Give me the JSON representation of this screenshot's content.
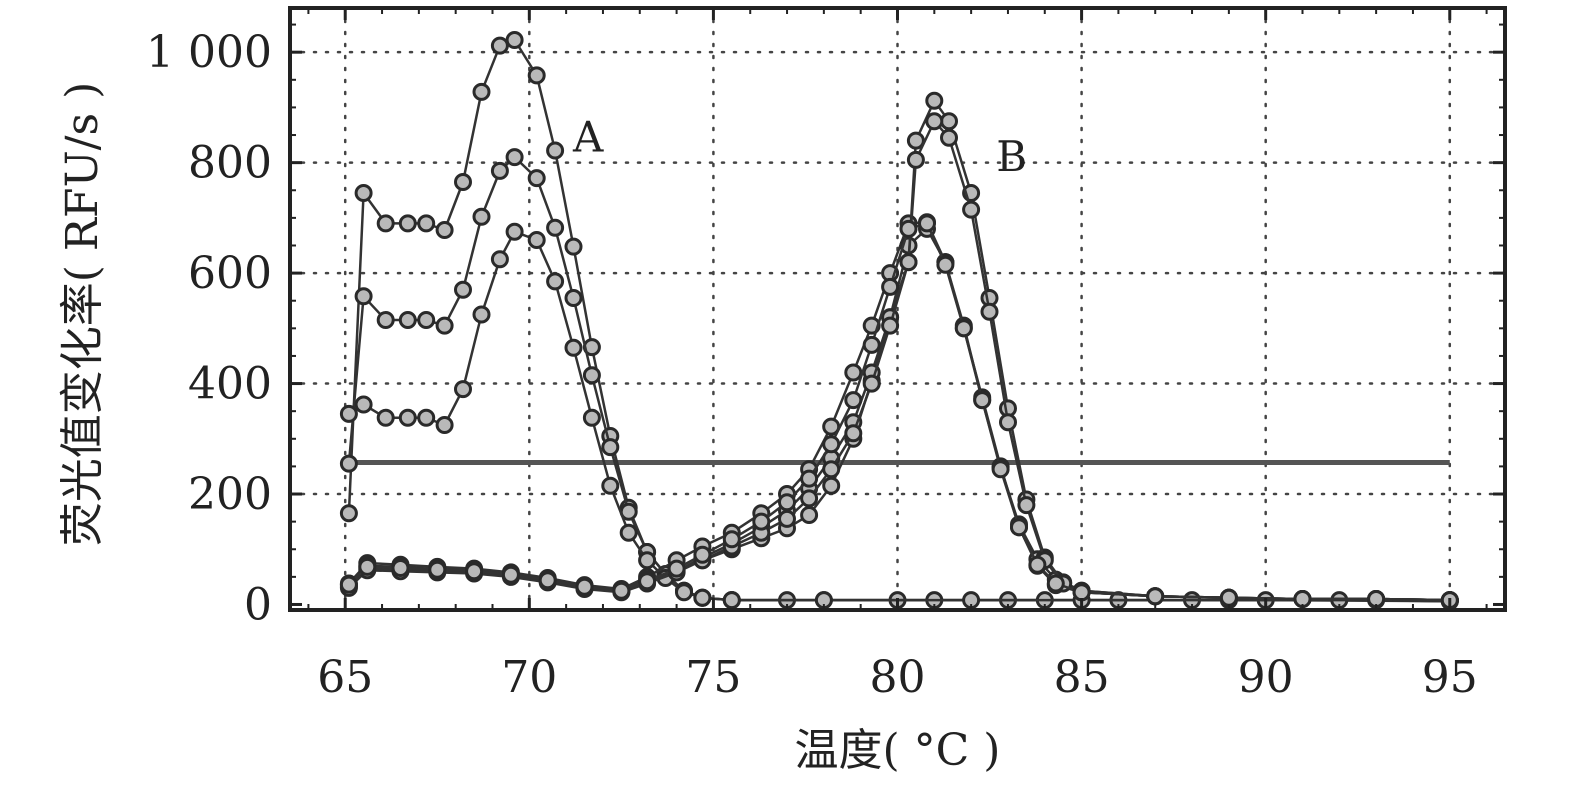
{
  "chart_data": {
    "type": "line",
    "xlabel": "温度( °C )",
    "ylabel": "荧光值变化率( RFU/s )",
    "xlim": [
      63.5,
      96.5
    ],
    "ylim": [
      -10,
      1080
    ],
    "x_ticks": [
      "65",
      "70",
      "75",
      "80",
      "85",
      "90",
      "95"
    ],
    "y_ticks": [
      "0",
      "200",
      "400",
      "600",
      "800",
      "1 000"
    ],
    "grid": true,
    "grid_style": "dotted",
    "annotations": [
      {
        "text": "A",
        "x": 71.6,
        "y": 820
      },
      {
        "text": "B",
        "x": 83.1,
        "y": 785
      }
    ],
    "threshold": {
      "y": 257,
      "x_start": 65.1,
      "x_end": 95
    },
    "series": [
      {
        "group": "A",
        "points": [
          [
            65.1,
            165
          ],
          [
            65.5,
            745
          ],
          [
            66.1,
            690
          ],
          [
            66.7,
            690
          ],
          [
            67.2,
            690
          ],
          [
            67.7,
            678
          ],
          [
            68.2,
            765
          ],
          [
            68.7,
            928
          ],
          [
            69.2,
            1012
          ],
          [
            69.6,
            1022
          ],
          [
            70.2,
            958
          ],
          [
            70.7,
            822
          ],
          [
            71.2,
            648
          ],
          [
            71.7,
            466
          ],
          [
            72.2,
            305
          ],
          [
            72.7,
            175
          ],
          [
            73.2,
            95
          ],
          [
            73.7,
            55
          ],
          [
            74.2,
            25
          ],
          [
            74.7,
            12
          ],
          [
            75.5,
            8
          ],
          [
            77,
            8
          ],
          [
            80,
            8
          ],
          [
            83,
            8
          ],
          [
            86,
            8
          ],
          [
            90,
            8
          ],
          [
            95,
            6
          ]
        ]
      },
      {
        "group": "A",
        "points": [
          [
            65.1,
            255
          ],
          [
            65.5,
            558
          ],
          [
            66.1,
            515
          ],
          [
            66.7,
            515
          ],
          [
            67.2,
            515
          ],
          [
            67.7,
            505
          ],
          [
            68.2,
            570
          ],
          [
            68.7,
            702
          ],
          [
            69.2,
            785
          ],
          [
            69.6,
            810
          ],
          [
            70.2,
            772
          ],
          [
            70.7,
            682
          ],
          [
            71.2,
            555
          ],
          [
            71.7,
            415
          ],
          [
            72.2,
            285
          ],
          [
            72.7,
            168
          ],
          [
            73.2,
            95
          ],
          [
            73.7,
            55
          ],
          [
            74.2,
            25
          ],
          [
            74.7,
            12
          ],
          [
            75.5,
            8
          ],
          [
            78,
            8
          ],
          [
            81,
            8
          ],
          [
            84,
            8
          ],
          [
            88,
            8
          ],
          [
            92,
            8
          ],
          [
            95,
            6
          ]
        ]
      },
      {
        "group": "A",
        "points": [
          [
            65.1,
            345
          ],
          [
            65.5,
            362
          ],
          [
            66.1,
            338
          ],
          [
            66.7,
            338
          ],
          [
            67.2,
            338
          ],
          [
            67.7,
            325
          ],
          [
            68.2,
            390
          ],
          [
            68.7,
            525
          ],
          [
            69.2,
            625
          ],
          [
            69.6,
            675
          ],
          [
            70.2,
            660
          ],
          [
            70.7,
            585
          ],
          [
            71.2,
            465
          ],
          [
            71.7,
            338
          ],
          [
            72.2,
            215
          ],
          [
            72.7,
            130
          ],
          [
            73.2,
            80
          ],
          [
            73.7,
            48
          ],
          [
            74.2,
            22
          ],
          [
            74.7,
            12
          ],
          [
            75.5,
            8
          ],
          [
            78,
            8
          ],
          [
            82,
            8
          ],
          [
            85,
            8
          ],
          [
            89,
            8
          ],
          [
            93,
            8
          ],
          [
            95,
            6
          ]
        ]
      },
      {
        "group": "B",
        "points": [
          [
            65.1,
            38
          ],
          [
            65.6,
            75
          ],
          [
            66.5,
            72
          ],
          [
            67.5,
            68
          ],
          [
            68.5,
            65
          ],
          [
            69.5,
            58
          ],
          [
            70.5,
            48
          ],
          [
            71.5,
            35
          ],
          [
            72.5,
            28
          ],
          [
            73.2,
            50
          ],
          [
            74,
            80
          ],
          [
            74.7,
            105
          ],
          [
            75.5,
            130
          ],
          [
            76.3,
            165
          ],
          [
            77,
            200
          ],
          [
            77.6,
            245
          ],
          [
            78.2,
            322
          ],
          [
            78.8,
            420
          ],
          [
            79.3,
            505
          ],
          [
            79.8,
            600
          ],
          [
            80.3,
            690
          ],
          [
            80.8,
            692
          ],
          [
            81.3,
            620
          ],
          [
            81.8,
            500
          ],
          [
            82.3,
            375
          ],
          [
            82.8,
            250
          ],
          [
            83.3,
            140
          ],
          [
            83.8,
            70
          ],
          [
            84.3,
            35
          ],
          [
            85,
            22
          ],
          [
            87,
            15
          ],
          [
            89,
            12
          ],
          [
            91,
            10
          ],
          [
            93,
            10
          ],
          [
            95,
            8
          ]
        ]
      },
      {
        "group": "B",
        "points": [
          [
            65.1,
            35
          ],
          [
            65.6,
            70
          ],
          [
            66.5,
            68
          ],
          [
            67.5,
            64
          ],
          [
            68.5,
            62
          ],
          [
            69.5,
            55
          ],
          [
            70.5,
            46
          ],
          [
            71.5,
            33
          ],
          [
            72.5,
            26
          ],
          [
            73.2,
            45
          ],
          [
            74,
            62
          ],
          [
            74.7,
            80
          ],
          [
            75.5,
            100
          ],
          [
            76.3,
            120
          ],
          [
            77,
            138
          ],
          [
            77.6,
            162
          ],
          [
            78.2,
            215
          ],
          [
            78.8,
            300
          ],
          [
            79.3,
            405
          ],
          [
            79.8,
            520
          ],
          [
            80.3,
            650
          ],
          [
            80.8,
            680
          ],
          [
            81.3,
            620
          ],
          [
            81.8,
            505
          ],
          [
            82.3,
            370
          ],
          [
            82.8,
            248
          ],
          [
            83.3,
            145
          ],
          [
            83.8,
            82
          ],
          [
            84.3,
            45
          ],
          [
            85,
            25
          ],
          [
            87,
            15
          ],
          [
            89,
            12
          ],
          [
            91,
            10
          ],
          [
            93,
            10
          ],
          [
            95,
            8
          ]
        ]
      },
      {
        "group": "B",
        "points": [
          [
            65.1,
            32
          ],
          [
            65.6,
            65
          ],
          [
            66.5,
            62
          ],
          [
            67.5,
            60
          ],
          [
            68.5,
            58
          ],
          [
            69.5,
            52
          ],
          [
            70.5,
            42
          ],
          [
            71.5,
            30
          ],
          [
            72.5,
            24
          ],
          [
            73.2,
            40
          ],
          [
            74,
            60
          ],
          [
            74.7,
            85
          ],
          [
            75.5,
            110
          ],
          [
            76.3,
            140
          ],
          [
            77,
            170
          ],
          [
            77.6,
            210
          ],
          [
            78.2,
            265
          ],
          [
            78.8,
            330
          ],
          [
            79.3,
            420
          ],
          [
            79.8,
            520
          ],
          [
            80.3,
            620
          ],
          [
            80.5,
            840
          ],
          [
            81,
            912
          ],
          [
            81.4,
            875
          ],
          [
            82,
            745
          ],
          [
            82.5,
            555
          ],
          [
            83,
            355
          ],
          [
            83.5,
            190
          ],
          [
            84,
            85
          ],
          [
            84.5,
            40
          ],
          [
            85,
            25
          ],
          [
            87,
            15
          ],
          [
            89,
            12
          ],
          [
            91,
            10
          ],
          [
            93,
            10
          ],
          [
            95,
            8
          ]
        ]
      },
      {
        "group": "B",
        "points": [
          [
            65.1,
            30
          ],
          [
            65.6,
            62
          ],
          [
            66.5,
            60
          ],
          [
            67.5,
            58
          ],
          [
            68.5,
            56
          ],
          [
            69.5,
            50
          ],
          [
            70.5,
            40
          ],
          [
            71.5,
            28
          ],
          [
            72.5,
            22
          ],
          [
            73.2,
            38
          ],
          [
            74,
            58
          ],
          [
            74.7,
            80
          ],
          [
            75.5,
            105
          ],
          [
            76.3,
            130
          ],
          [
            77,
            155
          ],
          [
            77.6,
            192
          ],
          [
            78.2,
            245
          ],
          [
            78.8,
            310
          ],
          [
            79.3,
            400
          ],
          [
            79.8,
            505
          ],
          [
            80.3,
            620
          ],
          [
            80.5,
            805
          ],
          [
            81,
            875
          ],
          [
            81.4,
            845
          ],
          [
            82,
            715
          ],
          [
            82.5,
            530
          ],
          [
            83,
            330
          ],
          [
            83.5,
            180
          ],
          [
            84,
            80
          ],
          [
            84.5,
            38
          ],
          [
            85,
            22
          ],
          [
            87,
            15
          ],
          [
            89,
            12
          ],
          [
            91,
            10
          ],
          [
            93,
            10
          ],
          [
            95,
            8
          ]
        ]
      },
      {
        "group": "B",
        "points": [
          [
            65.1,
            36
          ],
          [
            65.6,
            68
          ],
          [
            66.5,
            66
          ],
          [
            67.5,
            63
          ],
          [
            68.5,
            60
          ],
          [
            69.5,
            54
          ],
          [
            70.5,
            44
          ],
          [
            71.5,
            32
          ],
          [
            72.5,
            25
          ],
          [
            73.2,
            42
          ],
          [
            74,
            65
          ],
          [
            74.7,
            90
          ],
          [
            75.5,
            118
          ],
          [
            76.3,
            150
          ],
          [
            77,
            185
          ],
          [
            77.6,
            228
          ],
          [
            78.2,
            290
          ],
          [
            78.8,
            370
          ],
          [
            79.3,
            470
          ],
          [
            79.8,
            575
          ],
          [
            80.3,
            680
          ],
          [
            80.8,
            690
          ],
          [
            81.3,
            615
          ],
          [
            81.8,
            500
          ],
          [
            82.3,
            370
          ],
          [
            82.8,
            245
          ],
          [
            83.3,
            140
          ],
          [
            83.8,
            72
          ],
          [
            84.3,
            38
          ],
          [
            85,
            22
          ],
          [
            87,
            15
          ],
          [
            89,
            12
          ],
          [
            91,
            10
          ],
          [
            93,
            10
          ],
          [
            95,
            8
          ]
        ]
      }
    ]
  }
}
